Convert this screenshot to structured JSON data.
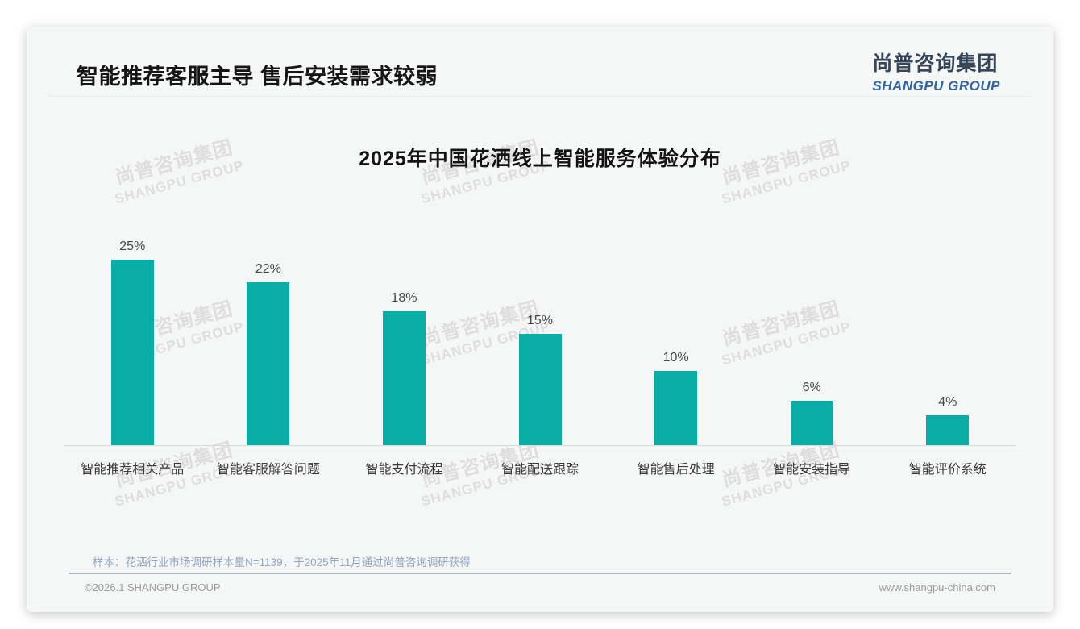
{
  "header": {
    "title": "智能推荐客服主导 售后安装需求较弱"
  },
  "logo": {
    "cn": "尚普咨询集团",
    "en": "SHANGPU GROUP"
  },
  "watermark": {
    "cn": "尚普咨询集团",
    "en": "SHANGPU GROUP"
  },
  "chart_data": {
    "type": "bar",
    "title": "2025年中国花洒线上智能服务体验分布",
    "categories": [
      "智能推荐相关产品",
      "智能客服解答问题",
      "智能支付流程",
      "智能配送跟踪",
      "智能售后处理",
      "智能安装指导",
      "智能评价系统"
    ],
    "values": [
      25,
      22,
      18,
      15,
      10,
      6,
      4
    ],
    "value_labels": [
      "25%",
      "22%",
      "18%",
      "15%",
      "10%",
      "6%",
      "4%"
    ],
    "unit": "%",
    "xlabel": "",
    "ylabel": "",
    "ylim": [
      0,
      28
    ],
    "grid": false,
    "legend": "none",
    "bar_color": "#0aada6"
  },
  "footer": {
    "note": "样本：花洒行业市场调研样本量N=1139，于2025年11月通过尚普咨询调研获得",
    "copyright": "©2026.1 SHANGPU GROUP",
    "website": "www.shangpu-china.com"
  },
  "colors": {
    "bar": "#0aada6",
    "card_bg": "#f5f6f6",
    "logo_dark": "#36465a",
    "logo_blue": "#2f66a2",
    "note_blue": "#93a5c1"
  }
}
